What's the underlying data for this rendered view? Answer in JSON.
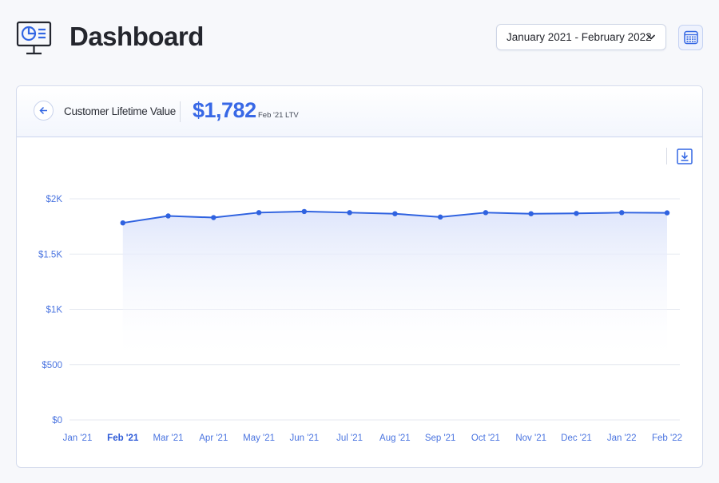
{
  "header": {
    "title": "Dashboard",
    "app_icon": "monitor-pie-chart-icon",
    "date_range": "January 2021 - February 2022",
    "date_range_icon": "chevron-down-icon",
    "calendar_icon": "calendar-icon"
  },
  "card": {
    "back_icon": "arrow-left-icon",
    "metric_title": "Customer Lifetime Value",
    "metric_value": "$1,782",
    "metric_sub": "Feb '21 LTV",
    "download_icon": "download-icon"
  },
  "colors": {
    "accent": "#3868e6",
    "line": "#2f62e0",
    "area_top": "#dfe6fb",
    "grid": "#e6e9f0"
  },
  "chart_data": {
    "type": "area",
    "x": [
      "Jan '21",
      "Feb '21",
      "Mar '21",
      "Apr '21",
      "May '21",
      "Jun '21",
      "Jul '21",
      "Aug '21",
      "Sep '21",
      "Oct '21",
      "Nov '21",
      "Dec '21",
      "Jan '22",
      "Feb '22"
    ],
    "highlighted": "Feb '21",
    "series": [
      {
        "values": [
          null,
          1782,
          1845,
          1830,
          1875,
          1885,
          1875,
          1865,
          1835,
          1875,
          1865,
          1868,
          1875,
          1873
        ]
      }
    ],
    "yticks": [
      0,
      500,
      1000,
      1500,
      2000
    ],
    "ytick_labels": [
      "$0",
      "$500",
      "$1K",
      "$1.5K",
      "$2K"
    ],
    "ylim": [
      0,
      2000
    ],
    "grid": true,
    "legend": "none"
  }
}
